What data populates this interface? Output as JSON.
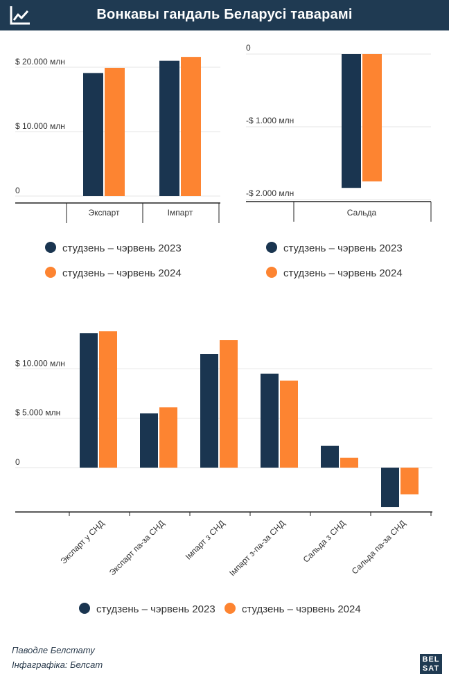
{
  "title": "Вонкавы гандаль Беларусі таварамі",
  "colors": {
    "s2023": "#1a3550",
    "s2024": "#fd8431",
    "header": "#1f3a52",
    "grid": "#e5e5e5",
    "axis": "#222222",
    "text": "#333333"
  },
  "legend": {
    "s2023": "студзень – чэрвень 2023",
    "s2024": "студзень – чэрвень 2024"
  },
  "chart_data": [
    {
      "type": "bar",
      "categories": [
        "Экспарт",
        "Імпарт"
      ],
      "series": [
        {
          "name": "студзень – чэрвень 2023",
          "values": [
            19100,
            21000
          ]
        },
        {
          "name": "студзень – чэрвень 2024",
          "values": [
            19900,
            21600
          ]
        }
      ],
      "ylim": [
        0,
        20000
      ],
      "yticks": [
        0,
        10000,
        20000
      ],
      "ytick_labels": [
        "0",
        "$ 10.000 млн",
        "$ 20.000 млн"
      ]
    },
    {
      "type": "bar",
      "categories": [
        "Сальда"
      ],
      "series": [
        {
          "name": "студзень – чэрвень 2023",
          "values": [
            -1840
          ]
        },
        {
          "name": "студзень – чэрвень 2024",
          "values": [
            -1750
          ]
        }
      ],
      "ylim": [
        -2000,
        0
      ],
      "yticks": [
        0,
        -1000,
        -2000
      ],
      "ytick_labels": [
        "0",
        "-$ 1.000 млн",
        "-$ 2.000 млн"
      ]
    },
    {
      "type": "bar",
      "categories": [
        "Экспарт у СНД",
        "Экспарт па-за СНД",
        "Імпарт з СНД",
        "Імпарт з-па-за СНД",
        "Сальда з СНД",
        "Сальда па-за СНД"
      ],
      "series": [
        {
          "name": "студзень – чэрвень 2023",
          "values": [
            13600,
            5500,
            11500,
            9500,
            2200,
            -4000
          ]
        },
        {
          "name": "студзень – чэрвень 2024",
          "values": [
            13800,
            6100,
            12900,
            8800,
            1000,
            -2700
          ]
        }
      ],
      "ylim": [
        -4000,
        14000
      ],
      "yticks": [
        0,
        5000,
        10000
      ],
      "ytick_labels": [
        "0",
        "$ 5.000 млн",
        "$ 10.000 млн"
      ]
    }
  ],
  "footer": {
    "source": "Паводле Белстату",
    "credit": "Інфаграфіка: Белсат"
  },
  "brand": {
    "line1": "BEL",
    "line2": "SAT"
  }
}
